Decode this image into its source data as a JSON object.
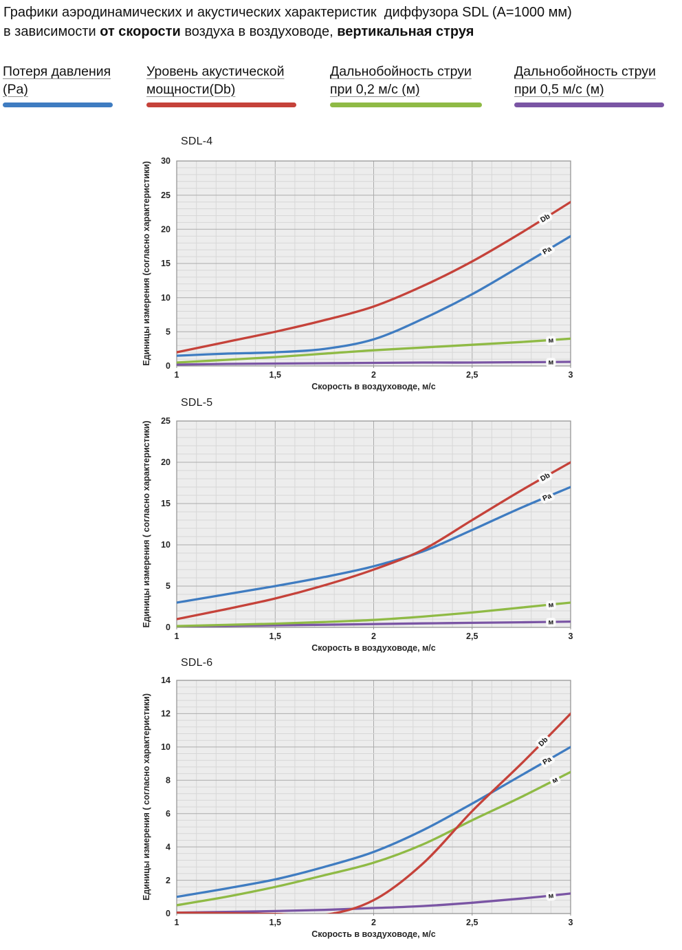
{
  "header": {
    "line1": "Графики аэродинамических и акустических характеристик  диффузора SDL (A=1000 мм)",
    "line2_t1": "в зависимости ",
    "line2_b1": "от скорости",
    "line2_t2": " воздуха в воздуховоде, ",
    "line2_b2": "вертикальная струя"
  },
  "legend": {
    "items": [
      {
        "line1": "Потеря давления",
        "line2": "(Pa)",
        "color": "#3f7cc1"
      },
      {
        "line1": "Уровень акустической",
        "line2": "мощности(Db)",
        "color": "#c5423a"
      },
      {
        "line1": "Дальнобойность струи",
        "line2": "при 0,2 м/с (м)",
        "color": "#8fba45"
      },
      {
        "line1": "Дальнобойность струи",
        "line2": "при 0,5 м/с (м)",
        "color": "#7a55a4"
      }
    ]
  },
  "chart_data": [
    {
      "type": "line",
      "title": "SDL-4",
      "xlabel": "Скорость в воздуховоде, м/с",
      "ylabel": "Единицы измерения (согласно характеристики)",
      "xlim": [
        1,
        3
      ],
      "ylim": [
        0,
        30
      ],
      "x_major": 0.5,
      "x_minor": 0.1,
      "y_major": 5,
      "y_minor": 1,
      "xtick_labels": [
        "1",
        "1,5",
        "2",
        "2,5",
        "3"
      ],
      "ytick_labels": [
        "0",
        "5",
        "10",
        "15",
        "20",
        "25",
        "30"
      ],
      "grid": "on",
      "x": [
        1,
        1.25,
        1.5,
        1.75,
        2,
        2.25,
        2.5,
        2.75,
        3
      ],
      "series": [
        {
          "name": "Дальнобойность струи при 0,5 м/с",
          "inline_label": "м",
          "label_at_x": 2.9,
          "color": "#7a55a4",
          "values": [
            0.2,
            0.3,
            0.35,
            0.4,
            0.45,
            0.5,
            0.5,
            0.55,
            0.6
          ]
        },
        {
          "name": "Дальнобойность струи при 0,2 м/с",
          "inline_label": "м",
          "label_at_x": 2.9,
          "color": "#8fba45",
          "values": [
            0.5,
            0.9,
            1.3,
            1.8,
            2.3,
            2.7,
            3.1,
            3.5,
            4
          ]
        },
        {
          "name": "Потеря давления",
          "inline_label": "Pa",
          "label_at_x": 2.88,
          "color": "#3f7cc1",
          "values": [
            1.5,
            1.8,
            2,
            2.5,
            3.9,
            6.9,
            10.5,
            14.7,
            19
          ]
        },
        {
          "name": "Уровень акустической мощности",
          "inline_label": "Db",
          "label_at_x": 2.87,
          "color": "#c5423a",
          "values": [
            2,
            3.5,
            5,
            6.7,
            8.7,
            11.7,
            15.3,
            19.5,
            24
          ]
        }
      ]
    },
    {
      "type": "line",
      "title": "SDL-5",
      "xlabel": "Скорость в воздуховоде, м/с",
      "ylabel": "Единицы измерения ( согласно характеристики)",
      "xlim": [
        1,
        3
      ],
      "ylim": [
        0,
        25
      ],
      "x_major": 0.5,
      "x_minor": 0.1,
      "y_major": 5,
      "y_minor": 1,
      "xtick_labels": [
        "1",
        "1,5",
        "2",
        "2,5",
        "3"
      ],
      "ytick_labels": [
        "0",
        "5",
        "10",
        "15",
        "20",
        "25"
      ],
      "grid": "on",
      "x": [
        1,
        1.25,
        1.5,
        1.75,
        2,
        2.25,
        2.5,
        2.75,
        3
      ],
      "series": [
        {
          "name": "Дальнобойность струи при 0,5 м/с",
          "inline_label": "м",
          "label_at_x": 2.9,
          "color": "#7a55a4",
          "values": [
            0.1,
            0.18,
            0.25,
            0.32,
            0.4,
            0.48,
            0.55,
            0.62,
            0.7
          ]
        },
        {
          "name": "Дальнобойность струи при 0,2 м/с",
          "inline_label": "м",
          "label_at_x": 2.9,
          "color": "#8fba45",
          "values": [
            0.15,
            0.3,
            0.45,
            0.65,
            0.9,
            1.3,
            1.8,
            2.4,
            3
          ]
        },
        {
          "name": "Потеря давления",
          "inline_label": "Pa",
          "label_at_x": 2.88,
          "color": "#3f7cc1",
          "values": [
            3,
            4,
            5,
            6.1,
            7.4,
            9.2,
            11.8,
            14.5,
            17
          ]
        },
        {
          "name": "Уровень акустической мощности",
          "inline_label": "Db",
          "label_at_x": 2.87,
          "color": "#c5423a",
          "values": [
            1,
            2.2,
            3.5,
            5.1,
            7,
            9.4,
            13,
            16.6,
            20
          ]
        }
      ]
    },
    {
      "type": "line",
      "title": "SDL-6",
      "xlabel": "Скорость в воздуховоде, м/с",
      "ylabel": "Единицы измерения ( согласно характеристики)",
      "xlim": [
        1,
        3
      ],
      "ylim": [
        0,
        14
      ],
      "x_major": 0.5,
      "x_minor": 0.1,
      "y_major": 2,
      "y_minor": 0.4,
      "xtick_labels": [
        "1",
        "1,5",
        "2",
        "2,5",
        "3"
      ],
      "ytick_labels": [
        "0",
        "2",
        "4",
        "6",
        "8",
        "10",
        "12",
        "14"
      ],
      "grid": "on",
      "x": [
        1,
        1.25,
        1.5,
        1.75,
        2,
        2.25,
        2.5,
        2.75,
        3
      ],
      "series": [
        {
          "name": "Дальнобойность струи при 0,5 м/с",
          "inline_label": "м",
          "label_at_x": 2.9,
          "color": "#7a55a4",
          "values": [
            0.05,
            0.1,
            0.15,
            0.22,
            0.33,
            0.45,
            0.65,
            0.9,
            1.2
          ]
        },
        {
          "name": "Дальнобойность струи при 0,2 м/с",
          "inline_label": "м",
          "label_at_x": 2.92,
          "color": "#8fba45",
          "values": [
            0.5,
            1,
            1.6,
            2.3,
            3.05,
            4.15,
            5.6,
            7,
            8.5
          ]
        },
        {
          "name": "Потеря давления",
          "inline_label": "Pa",
          "label_at_x": 2.88,
          "color": "#3f7cc1",
          "values": [
            1,
            1.5,
            2.05,
            2.8,
            3.7,
            5,
            6.6,
            8.3,
            10
          ]
        },
        {
          "name": "Уровень акустической мощности",
          "inline_label": "Db",
          "label_at_x": 2.86,
          "color": "#c5423a",
          "values": [
            0.05,
            0.02,
            -0.03,
            -0.08,
            0.8,
            3,
            6.15,
            9,
            12
          ]
        }
      ]
    }
  ]
}
